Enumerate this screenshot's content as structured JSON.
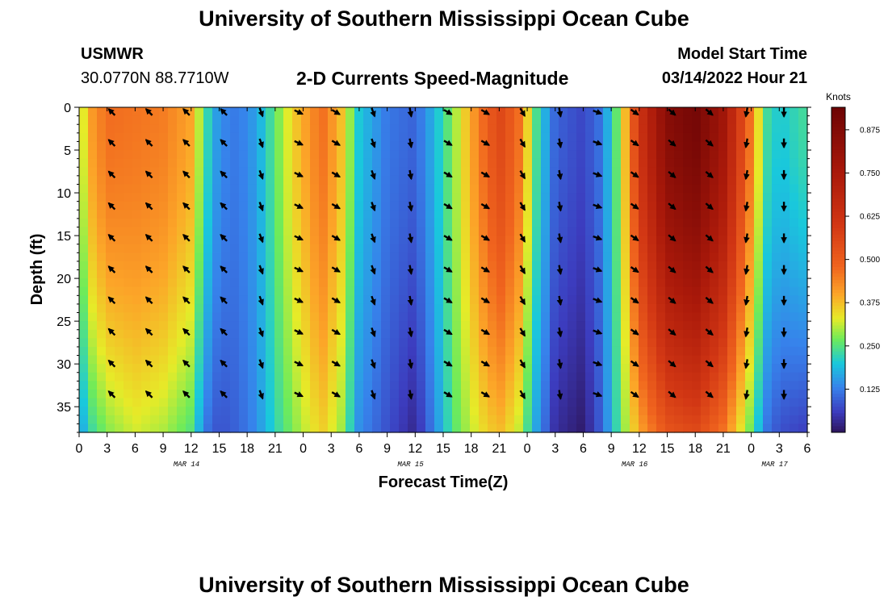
{
  "header": {
    "title": "University of Southern Mississippi Ocean Cube",
    "station": "USMWR",
    "coords": "30.0770N  88.7710W",
    "subtitle": "2-D Currents Speed-Magnitude",
    "model_start_label": "Model Start Time",
    "model_start_value": "03/14/2022 Hour 21"
  },
  "footer": {
    "title": "University of Southern Mississippi Ocean Cube"
  },
  "chart_data": {
    "type": "heatmap",
    "title": "2-D Currents Speed-Magnitude",
    "xlabel": "Forecast Time(Z)",
    "ylabel": "Depth (ft)",
    "x_unit": "hours since 03/14 00Z",
    "xlim": [
      0,
      78
    ],
    "ylim": [
      0,
      38
    ],
    "x_ticks": [
      0,
      3,
      6,
      9,
      12,
      15,
      18,
      21,
      24,
      27,
      30,
      33,
      36,
      39,
      42,
      45,
      48,
      51,
      54,
      57,
      60,
      63,
      66,
      69,
      72,
      75,
      78
    ],
    "x_tick_labels": [
      "0",
      "3",
      "6",
      "9",
      "12",
      "15",
      "18",
      "21",
      "0",
      "3",
      "6",
      "9",
      "12",
      "15",
      "18",
      "21",
      "0",
      "3",
      "6",
      "9",
      "12",
      "15",
      "18",
      "21",
      "0",
      "3",
      "6"
    ],
    "y_ticks": [
      0,
      5,
      10,
      15,
      20,
      25,
      30,
      35
    ],
    "y_tick_labels": [
      "0",
      "5",
      "10",
      "15",
      "20",
      "25",
      "30",
      "35"
    ],
    "date_labels": [
      {
        "text": "MAR 14",
        "x": 11.5
      },
      {
        "text": "MAR 15",
        "x": 35.5
      },
      {
        "text": "MAR 16",
        "x": 59.5
      },
      {
        "text": "MAR 17",
        "x": 74.5
      }
    ],
    "colorbar": {
      "label": "Knots",
      "min": 0,
      "max": 0.94,
      "ticks": [
        0.125,
        0.25,
        0.375,
        0.5,
        0.625,
        0.75,
        0.875
      ],
      "tick_labels": [
        "0.125",
        "0.250",
        "0.375",
        "0.500",
        "0.625",
        "0.750",
        "0.875"
      ]
    },
    "speed_profile": [
      {
        "h": 0,
        "surface": 0.27,
        "bottom": 0.14
      },
      {
        "h": 1,
        "surface": 0.4,
        "bottom": 0.22
      },
      {
        "h": 3,
        "surface": 0.47,
        "bottom": 0.28
      },
      {
        "h": 6,
        "surface": 0.46,
        "bottom": 0.32
      },
      {
        "h": 9,
        "surface": 0.45,
        "bottom": 0.3
      },
      {
        "h": 12,
        "surface": 0.4,
        "bottom": 0.25
      },
      {
        "h": 13.5,
        "surface": 0.24,
        "bottom": 0.12
      },
      {
        "h": 15,
        "surface": 0.14,
        "bottom": 0.08
      },
      {
        "h": 17,
        "surface": 0.12,
        "bottom": 0.1
      },
      {
        "h": 19,
        "surface": 0.16,
        "bottom": 0.14
      },
      {
        "h": 21,
        "surface": 0.26,
        "bottom": 0.22
      },
      {
        "h": 23,
        "surface": 0.36,
        "bottom": 0.28
      },
      {
        "h": 26,
        "surface": 0.47,
        "bottom": 0.36
      },
      {
        "h": 28,
        "surface": 0.38,
        "bottom": 0.3
      },
      {
        "h": 30,
        "surface": 0.2,
        "bottom": 0.14
      },
      {
        "h": 33,
        "surface": 0.12,
        "bottom": 0.08
      },
      {
        "h": 36,
        "surface": 0.1,
        "bottom": 0.03
      },
      {
        "h": 38,
        "surface": 0.18,
        "bottom": 0.13
      },
      {
        "h": 40,
        "surface": 0.28,
        "bottom": 0.25
      },
      {
        "h": 43,
        "surface": 0.46,
        "bottom": 0.34
      },
      {
        "h": 45,
        "surface": 0.56,
        "bottom": 0.38
      },
      {
        "h": 47,
        "surface": 0.48,
        "bottom": 0.32
      },
      {
        "h": 49,
        "surface": 0.24,
        "bottom": 0.16
      },
      {
        "h": 51,
        "surface": 0.1,
        "bottom": 0.04
      },
      {
        "h": 54,
        "surface": 0.07,
        "bottom": 0.01
      },
      {
        "h": 56,
        "surface": 0.12,
        "bottom": 0.1
      },
      {
        "h": 58,
        "surface": 0.3,
        "bottom": 0.26
      },
      {
        "h": 60,
        "surface": 0.62,
        "bottom": 0.4
      },
      {
        "h": 63,
        "surface": 0.86,
        "bottom": 0.52
      },
      {
        "h": 66,
        "surface": 0.92,
        "bottom": 0.55
      },
      {
        "h": 69,
        "surface": 0.78,
        "bottom": 0.46
      },
      {
        "h": 72,
        "surface": 0.45,
        "bottom": 0.26
      },
      {
        "h": 73.5,
        "surface": 0.24,
        "bottom": 0.12
      },
      {
        "h": 75,
        "surface": 0.2,
        "bottom": 0.08
      },
      {
        "h": 78,
        "surface": 0.24,
        "bottom": 0.06
      }
    ],
    "vector_times": [
      3.5,
      7.5,
      11.5,
      15.5,
      19.5,
      23.5,
      27.5,
      31.5,
      35.5,
      39.5,
      43.5,
      47.5,
      51.5,
      55.5,
      59.5,
      63.5,
      67.5,
      71.5,
      75.5
    ],
    "vector_depths": [
      0,
      3.6,
      7.3,
      11,
      14.7,
      18.4,
      22,
      25.7,
      29.4,
      33
    ],
    "vector_directions_deg": [
      315,
      315,
      315,
      315,
      160,
      115,
      120,
      160,
      170,
      120,
      120,
      150,
      170,
      110,
      125,
      130,
      130,
      190,
      180
    ]
  }
}
